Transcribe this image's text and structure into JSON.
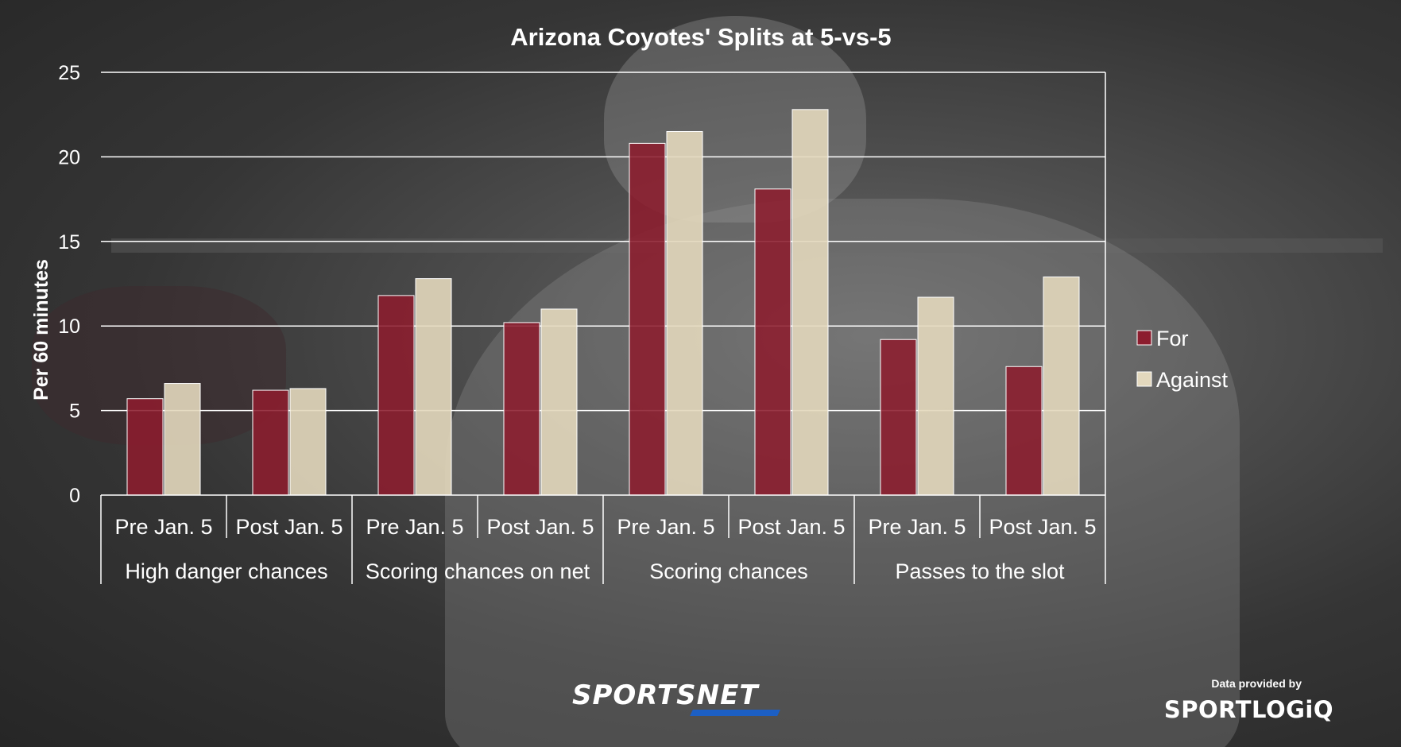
{
  "chart_data": {
    "type": "bar",
    "title": "Arizona Coyotes' Splits at 5-vs-5",
    "ylabel": "Per 60 minutes",
    "xlabel": "",
    "ylim": [
      0,
      25
    ],
    "yticks": [
      0,
      5,
      10,
      15,
      20,
      25
    ],
    "grid": true,
    "legend_position": "right",
    "groups": [
      {
        "name": "High danger chances",
        "categories": [
          "Pre Jan. 5",
          "Post Jan. 5"
        ]
      },
      {
        "name": "Scoring chances on net",
        "categories": [
          "Pre Jan. 5",
          "Post Jan. 5"
        ]
      },
      {
        "name": "Scoring chances",
        "categories": [
          "Pre Jan. 5",
          "Post Jan. 5"
        ]
      },
      {
        "name": "Passes to the slot",
        "categories": [
          "Pre Jan. 5",
          "Post Jan. 5"
        ]
      }
    ],
    "categories": [
      "Pre Jan. 5",
      "Post Jan. 5",
      "Pre Jan. 5",
      "Post Jan. 5",
      "Pre Jan. 5",
      "Post Jan. 5",
      "Pre Jan. 5",
      "Post Jan. 5"
    ],
    "series": [
      {
        "name": "For",
        "color": "#8c1d2e",
        "values": [
          5.7,
          6.2,
          11.8,
          10.2,
          20.8,
          18.1,
          9.2,
          7.6
        ]
      },
      {
        "name": "Against",
        "color": "#e3d8bd",
        "values": [
          6.6,
          6.3,
          12.8,
          11.0,
          21.5,
          22.8,
          11.7,
          12.9
        ]
      }
    ]
  },
  "branding": {
    "logo": "SPORTSNET",
    "credit_label": "Data provided by",
    "credit_logo": "SPORTLOGiQ"
  }
}
